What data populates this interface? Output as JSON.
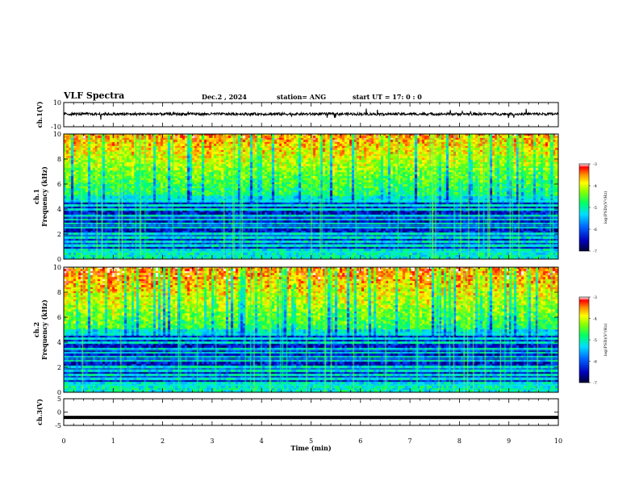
{
  "header": {
    "title": "VLF Spectra",
    "date": "Dec.2  , 2024",
    "station": "station= ANG",
    "start": "start  UT  =   17: 0  : 0"
  },
  "chart_data": [
    {
      "type": "line",
      "name": "ch1-waveform",
      "ylabel": "ch.1(V)",
      "ylim": [
        -10,
        10
      ],
      "yticks": [
        "10",
        "-10"
      ],
      "xlim": [
        0,
        10
      ],
      "baseline": 0.5
    },
    {
      "type": "heatmap",
      "name": "ch1-spectrogram",
      "ylabel_line1": "ch.1",
      "ylabel_line2": "Frequency  (kHz)",
      "ylim": [
        0,
        10
      ],
      "yticks": [
        "0",
        "2",
        "4",
        "6",
        "8",
        "10"
      ],
      "xlim": [
        0,
        10
      ],
      "colorbar": {
        "label": "log(PSD)(V²/Hz)",
        "range": [
          -7,
          -3
        ],
        "ticks": [
          "-3",
          "-4",
          "-5",
          "-6",
          "-7"
        ]
      }
    },
    {
      "type": "heatmap",
      "name": "ch2-spectrogram",
      "ylabel_line1": "ch.2",
      "ylabel_line2": "Frequency  (kHz)",
      "ylim": [
        0,
        10
      ],
      "yticks": [
        "0",
        "2",
        "4",
        "6",
        "8",
        "10"
      ],
      "xlim": [
        0,
        10
      ],
      "colorbar": {
        "label": "log(PSD)(V²/Hz)",
        "range": [
          -7,
          -3
        ],
        "ticks": [
          "-3",
          "-4",
          "-5",
          "-6",
          "-7"
        ]
      }
    },
    {
      "type": "line",
      "name": "ch3-waveform",
      "ylabel": "ch.3(V)",
      "ylim": [
        -5,
        5
      ],
      "yticks": [
        "5",
        "0",
        "-5"
      ],
      "xlim": [
        0,
        10
      ],
      "baseline": -2
    }
  ],
  "xaxis": {
    "label": "Time  (min)",
    "ticks": [
      "0",
      "1",
      "2",
      "3",
      "4",
      "5",
      "6",
      "7",
      "8",
      "9",
      "10"
    ]
  }
}
